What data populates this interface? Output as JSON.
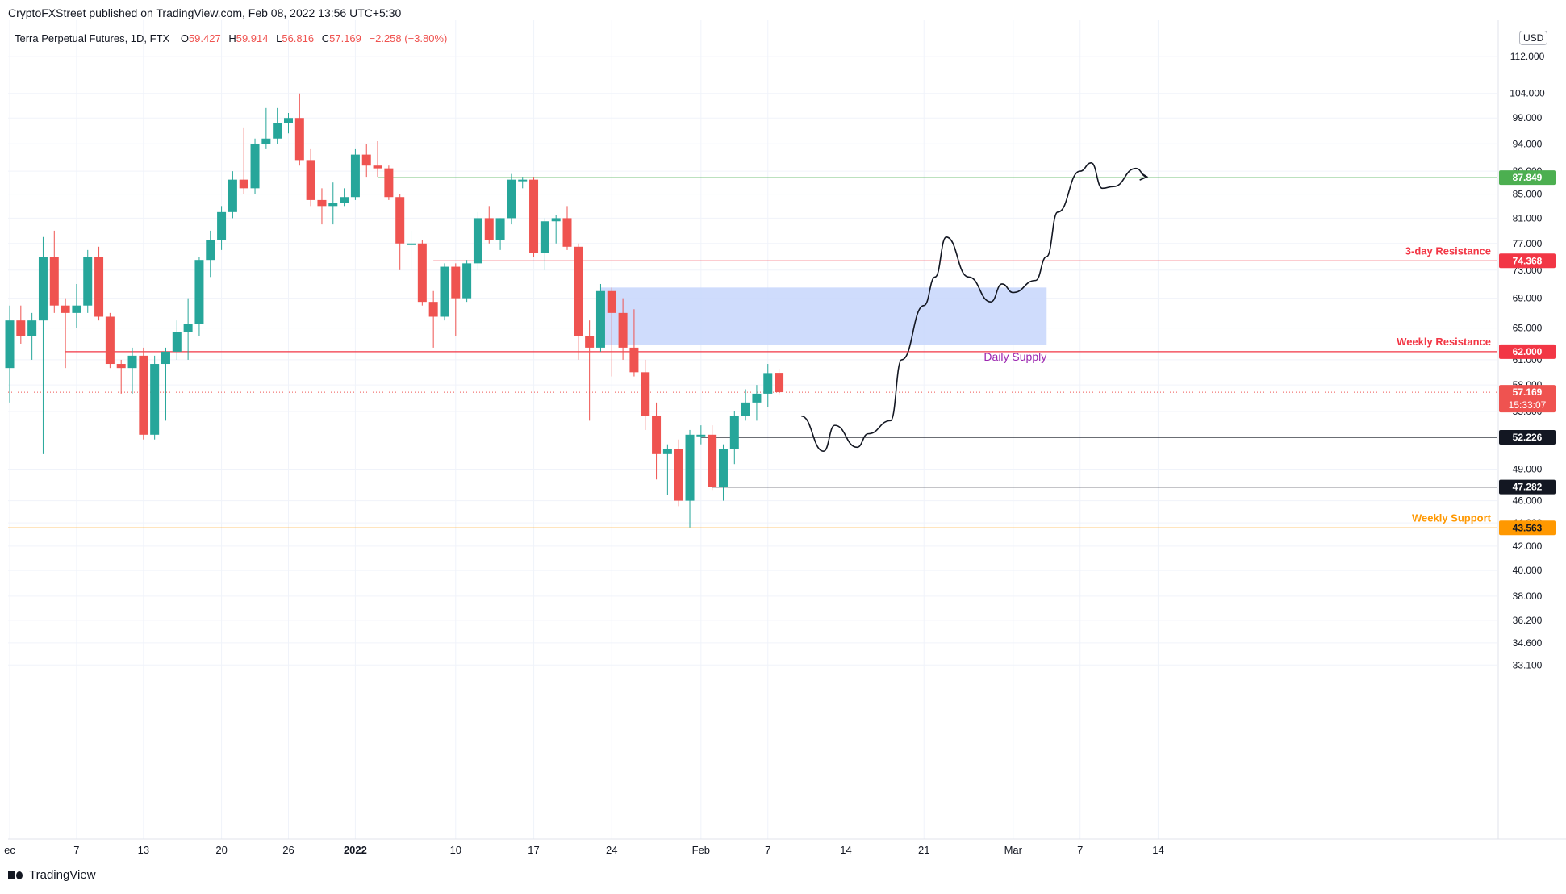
{
  "header": {
    "published_text": "CryptoFXStreet published on TradingView.com, Feb 08, 2022 13:56 UTC+5:30"
  },
  "chart_title": {
    "symbol_text": "Terra Perpetual Futures, 1D, FTX",
    "open_label": "O",
    "open_value": "59.427",
    "high_label": "H",
    "high_value": "59.914",
    "low_label": "L",
    "low_value": "56.816",
    "close_label": "C",
    "close_value": "57.169",
    "change_text": "−2.258 (−3.80%)"
  },
  "currency": "USD",
  "footer": {
    "brand": "TradingView"
  },
  "colors": {
    "up": "#26a69a",
    "down": "#ef5350",
    "resistance": "#f23645",
    "support_orange": "#ff9800",
    "green_level": "#4caf50",
    "supply_zone": "#c7d6fb",
    "supply_label": "#9c27b0"
  },
  "chart_data": {
    "type": "candlestick",
    "symbol": "Terra Perpetual Futures",
    "timeframe": "1D",
    "exchange": "FTX",
    "price_axis": {
      "scale": "log",
      "range": [
        33.1,
        121
      ],
      "ticks": [
        "112.000",
        "104.000",
        "99.000",
        "94.000",
        "89.000",
        "85.000",
        "81.000",
        "77.000",
        "73.000",
        "69.000",
        "65.000",
        "61.000",
        "58.000",
        "55.000",
        "49.000",
        "46.000",
        "44.000",
        "42.000",
        "40.000",
        "38.000",
        "36.200",
        "34.600",
        "33.100"
      ]
    },
    "time_axis": {
      "labels": [
        {
          "text": "ec",
          "date": "2021-12-01"
        },
        {
          "text": "7",
          "date": "2021-12-07"
        },
        {
          "text": "13",
          "date": "2021-12-13"
        },
        {
          "text": "20",
          "date": "2021-12-20"
        },
        {
          "text": "26",
          "date": "2021-12-26"
        },
        {
          "text": "2022",
          "date": "2022-01-01"
        },
        {
          "text": "10",
          "date": "2022-01-10"
        },
        {
          "text": "17",
          "date": "2022-01-17"
        },
        {
          "text": "24",
          "date": "2022-01-24"
        },
        {
          "text": "Feb",
          "date": "2022-02-01"
        },
        {
          "text": "7",
          "date": "2022-02-07"
        },
        {
          "text": "14",
          "date": "2022-02-14"
        },
        {
          "text": "21",
          "date": "2022-02-21"
        },
        {
          "text": "Mar",
          "date": "2022-03-01"
        },
        {
          "text": "7",
          "date": "2022-03-07"
        },
        {
          "text": "14",
          "date": "2022-03-14"
        }
      ]
    },
    "candles": [
      {
        "date": "2021-12-01",
        "o": 60,
        "h": 68,
        "l": 56,
        "c": 66
      },
      {
        "date": "2021-12-02",
        "o": 66,
        "h": 68,
        "l": 63,
        "c": 64
      },
      {
        "date": "2021-12-03",
        "o": 64,
        "h": 67,
        "l": 61,
        "c": 66
      },
      {
        "date": "2021-12-04",
        "o": 66,
        "h": 78,
        "l": 50.5,
        "c": 75
      },
      {
        "date": "2021-12-05",
        "o": 75,
        "h": 79,
        "l": 67,
        "c": 68
      },
      {
        "date": "2021-12-06",
        "o": 68,
        "h": 69,
        "l": 60,
        "c": 67
      },
      {
        "date": "2021-12-07",
        "o": 67,
        "h": 71,
        "l": 65,
        "c": 68
      },
      {
        "date": "2021-12-08",
        "o": 68,
        "h": 76,
        "l": 67,
        "c": 75
      },
      {
        "date": "2021-12-09",
        "o": 75,
        "h": 76.5,
        "l": 66,
        "c": 66.5
      },
      {
        "date": "2021-12-10",
        "o": 66.5,
        "h": 67,
        "l": 60,
        "c": 60.5
      },
      {
        "date": "2021-12-11",
        "o": 60.5,
        "h": 61,
        "l": 57,
        "c": 60
      },
      {
        "date": "2021-12-12",
        "o": 60,
        "h": 62.5,
        "l": 57,
        "c": 61.5
      },
      {
        "date": "2021-12-13",
        "o": 61.5,
        "h": 62.5,
        "l": 52,
        "c": 52.5
      },
      {
        "date": "2021-12-14",
        "o": 52.5,
        "h": 61.5,
        "l": 52,
        "c": 60.5
      },
      {
        "date": "2021-12-15",
        "o": 60.5,
        "h": 62.5,
        "l": 54,
        "c": 62
      },
      {
        "date": "2021-12-16",
        "o": 62,
        "h": 66,
        "l": 61,
        "c": 64.5
      },
      {
        "date": "2021-12-17",
        "o": 64.5,
        "h": 69,
        "l": 61,
        "c": 65.5
      },
      {
        "date": "2021-12-18",
        "o": 65.5,
        "h": 75,
        "l": 64,
        "c": 74.5
      },
      {
        "date": "2021-12-19",
        "o": 74.5,
        "h": 79,
        "l": 72,
        "c": 77.5
      },
      {
        "date": "2021-12-20",
        "o": 77.5,
        "h": 83,
        "l": 76,
        "c": 82
      },
      {
        "date": "2021-12-21",
        "o": 82,
        "h": 89,
        "l": 81,
        "c": 87.5
      },
      {
        "date": "2021-12-22",
        "o": 87.5,
        "h": 97,
        "l": 85,
        "c": 86
      },
      {
        "date": "2021-12-23",
        "o": 86,
        "h": 95,
        "l": 85,
        "c": 94
      },
      {
        "date": "2021-12-24",
        "o": 94,
        "h": 101,
        "l": 93,
        "c": 95
      },
      {
        "date": "2021-12-25",
        "o": 95,
        "h": 101,
        "l": 94,
        "c": 98
      },
      {
        "date": "2021-12-26",
        "o": 98,
        "h": 100,
        "l": 96,
        "c": 99
      },
      {
        "date": "2021-12-27",
        "o": 99,
        "h": 104,
        "l": 90,
        "c": 91
      },
      {
        "date": "2021-12-28",
        "o": 91,
        "h": 93,
        "l": 83,
        "c": 84
      },
      {
        "date": "2021-12-29",
        "o": 84,
        "h": 86,
        "l": 80,
        "c": 83
      },
      {
        "date": "2021-12-30",
        "o": 83,
        "h": 87,
        "l": 80,
        "c": 83.5
      },
      {
        "date": "2021-12-31",
        "o": 83.5,
        "h": 86,
        "l": 83,
        "c": 84.5
      },
      {
        "date": "2022-01-01",
        "o": 84.5,
        "h": 93,
        "l": 84,
        "c": 92
      },
      {
        "date": "2022-01-02",
        "o": 92,
        "h": 94,
        "l": 88,
        "c": 90
      },
      {
        "date": "2022-01-03",
        "o": 90,
        "h": 94.5,
        "l": 88,
        "c": 89.5
      },
      {
        "date": "2022-01-04",
        "o": 89.5,
        "h": 90,
        "l": 84,
        "c": 84.5
      },
      {
        "date": "2022-01-05",
        "o": 84.5,
        "h": 85,
        "l": 73,
        "c": 77
      },
      {
        "date": "2022-01-06",
        "o": 77,
        "h": 79,
        "l": 73,
        "c": 77
      },
      {
        "date": "2022-01-07",
        "o": 77,
        "h": 77.5,
        "l": 68,
        "c": 68.5
      },
      {
        "date": "2022-01-08",
        "o": 68.5,
        "h": 70,
        "l": 62.5,
        "c": 66.5
      },
      {
        "date": "2022-01-09",
        "o": 66.5,
        "h": 74,
        "l": 66,
        "c": 73.5
      },
      {
        "date": "2022-01-10",
        "o": 73.5,
        "h": 74,
        "l": 64,
        "c": 69
      },
      {
        "date": "2022-01-11",
        "o": 69,
        "h": 74.5,
        "l": 68.5,
        "c": 74
      },
      {
        "date": "2022-01-12",
        "o": 74,
        "h": 82,
        "l": 73,
        "c": 81
      },
      {
        "date": "2022-01-13",
        "o": 81,
        "h": 83,
        "l": 77,
        "c": 77.5
      },
      {
        "date": "2022-01-14",
        "o": 77.5,
        "h": 81,
        "l": 76,
        "c": 81
      },
      {
        "date": "2022-01-15",
        "o": 81,
        "h": 88.5,
        "l": 80,
        "c": 87.5
      },
      {
        "date": "2022-01-16",
        "o": 87.5,
        "h": 88,
        "l": 86,
        "c": 87.5
      },
      {
        "date": "2022-01-17",
        "o": 87.5,
        "h": 88,
        "l": 75,
        "c": 75.5
      },
      {
        "date": "2022-01-18",
        "o": 75.5,
        "h": 81,
        "l": 73,
        "c": 80.5
      },
      {
        "date": "2022-01-19",
        "o": 80.5,
        "h": 81.5,
        "l": 77,
        "c": 81
      },
      {
        "date": "2022-01-20",
        "o": 81,
        "h": 83,
        "l": 76,
        "c": 76.5
      },
      {
        "date": "2022-01-21",
        "o": 76.5,
        "h": 77,
        "l": 61,
        "c": 64
      },
      {
        "date": "2022-01-22",
        "o": 64,
        "h": 66,
        "l": 54,
        "c": 62.5
      },
      {
        "date": "2022-01-23",
        "o": 62.5,
        "h": 71,
        "l": 62,
        "c": 70
      },
      {
        "date": "2022-01-24",
        "o": 70,
        "h": 70.5,
        "l": 59,
        "c": 67
      },
      {
        "date": "2022-01-25",
        "o": 67,
        "h": 69,
        "l": 61,
        "c": 62.5
      },
      {
        "date": "2022-01-26",
        "o": 62.5,
        "h": 67.5,
        "l": 59,
        "c": 59.5
      },
      {
        "date": "2022-01-27",
        "o": 59.5,
        "h": 61,
        "l": 53,
        "c": 54.5
      },
      {
        "date": "2022-01-28",
        "o": 54.5,
        "h": 56,
        "l": 48,
        "c": 50.5
      },
      {
        "date": "2022-01-29",
        "o": 50.5,
        "h": 51.5,
        "l": 46.5,
        "c": 51
      },
      {
        "date": "2022-01-30",
        "o": 51,
        "h": 52,
        "l": 45.5,
        "c": 46
      },
      {
        "date": "2022-01-31",
        "o": 46,
        "h": 53,
        "l": 43.6,
        "c": 52.5
      },
      {
        "date": "2022-02-01",
        "o": 52.5,
        "h": 53.5,
        "l": 51.5,
        "c": 52.5
      },
      {
        "date": "2022-02-02",
        "o": 52.5,
        "h": 53.5,
        "l": 47,
        "c": 47.3
      },
      {
        "date": "2022-02-03",
        "o": 47.3,
        "h": 51.5,
        "l": 46,
        "c": 51
      },
      {
        "date": "2022-02-04",
        "o": 51,
        "h": 55,
        "l": 49.5,
        "c": 54.5
      },
      {
        "date": "2022-02-05",
        "o": 54.5,
        "h": 57.5,
        "l": 54,
        "c": 56
      },
      {
        "date": "2022-02-06",
        "o": 56,
        "h": 58,
        "l": 54,
        "c": 57
      },
      {
        "date": "2022-02-07",
        "o": 57,
        "h": 60.5,
        "l": 55.5,
        "c": 59.4
      },
      {
        "date": "2022-02-08",
        "o": 59.427,
        "h": 59.914,
        "l": 56.816,
        "c": 57.169
      }
    ],
    "levels": [
      {
        "name": "green-level",
        "price": 87.849,
        "label_text": "87.849",
        "line_from": "2022-01-03",
        "style": "green"
      },
      {
        "name": "3-day-resistance",
        "price": 74.368,
        "label_text": "74.368",
        "annotation": "3-day Resistance",
        "line_from": "2022-01-08",
        "style": "red"
      },
      {
        "name": "weekly-resistance",
        "price": 62.0,
        "label_text": "62.000",
        "annotation": "Weekly Resistance",
        "line_from": "2021-12-06",
        "style": "red"
      },
      {
        "name": "level-52",
        "price": 52.226,
        "label_text": "52.226",
        "line_from": "2022-02-01",
        "style": "black"
      },
      {
        "name": "level-47",
        "price": 47.282,
        "label_text": "47.282",
        "line_from": "2022-02-02",
        "style": "black"
      },
      {
        "name": "weekly-support",
        "price": 43.563,
        "label_text": "43.563",
        "annotation": "Weekly Support",
        "line_from": "2021-11-30",
        "style": "orange"
      }
    ],
    "current_price": {
      "price": 57.169,
      "label_text": "57.169",
      "countdown": "15:33:07"
    },
    "supply_zone": {
      "label": "Daily Supply",
      "from": "2022-01-23",
      "to": "2022-03-04",
      "top": 70.5,
      "bottom": 62.8
    },
    "projection_path": [
      [
        "2022-02-10",
        54.5
      ],
      [
        "2022-02-12",
        50.8
      ],
      [
        "2022-02-13",
        53.5
      ],
      [
        "2022-02-15",
        51.2
      ],
      [
        "2022-02-16",
        52.6
      ],
      [
        "2022-02-18",
        54
      ],
      [
        "2022-02-19",
        61
      ],
      [
        "2022-02-21",
        68
      ],
      [
        "2022-02-22",
        72
      ],
      [
        "2022-02-23",
        78
      ],
      [
        "2022-02-25",
        72
      ],
      [
        "2022-02-27",
        68.5
      ],
      [
        "2022-02-28",
        71
      ],
      [
        "2022-03-01",
        69.8
      ],
      [
        "2022-03-03",
        71.5
      ],
      [
        "2022-03-04",
        75
      ],
      [
        "2022-03-05",
        82
      ],
      [
        "2022-03-07",
        89
      ],
      [
        "2022-03-08",
        90.5
      ],
      [
        "2022-03-09",
        86
      ],
      [
        "2022-03-10",
        86.3
      ],
      [
        "2022-03-12",
        89.5
      ],
      [
        "2022-03-13",
        88
      ]
    ]
  }
}
